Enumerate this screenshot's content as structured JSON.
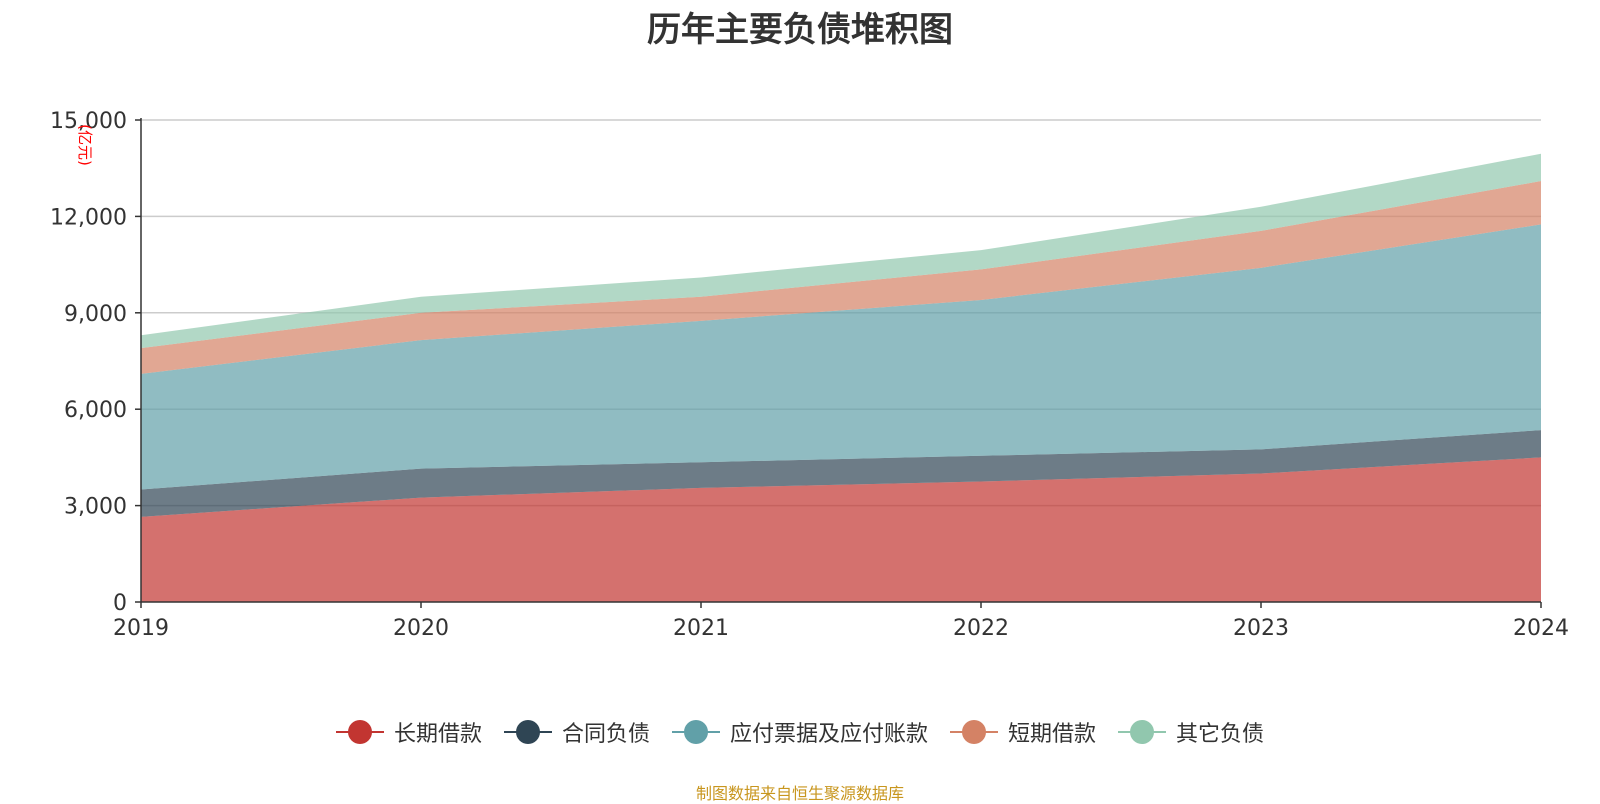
{
  "colors": {
    "长期借款": "#c23531",
    "合同负债": "#2f4554",
    "应付票据及应付账款": "#61a0a8",
    "短期借款": "#d48265",
    "其它负债": "#91c7ae",
    "axis": "#333333",
    "grid": "#cccccc",
    "unit_label": "#ff0000",
    "source_note": "#c8961e"
  },
  "chart_data": {
    "type": "area",
    "stacked": true,
    "title": "历年主要负债堆积图",
    "unit_label": "(亿元)",
    "x": [
      "2019",
      "2020",
      "2021",
      "2022",
      "2023",
      "2024"
    ],
    "ylim": [
      0,
      15000
    ],
    "yticks": [
      0,
      3000,
      6000,
      9000,
      12000,
      15000
    ],
    "ytick_labels": [
      "0",
      "3,000",
      "6,000",
      "9,000",
      "12,000",
      "15,000"
    ],
    "grid": true,
    "legend_position": "bottom",
    "series": [
      {
        "name": "长期借款",
        "values": [
          2650,
          3250,
          3550,
          3750,
          4000,
          4500
        ]
      },
      {
        "name": "合同负债",
        "values": [
          850,
          900,
          800,
          800,
          750,
          850
        ]
      },
      {
        "name": "应付票据及应付账款",
        "values": [
          3600,
          4000,
          4400,
          4850,
          5650,
          6400
        ]
      },
      {
        "name": "短期借款",
        "values": [
          800,
          850,
          750,
          950,
          1150,
          1350
        ]
      },
      {
        "name": "其它负债",
        "values": [
          400,
          500,
          600,
          600,
          750,
          850
        ]
      }
    ],
    "source_note": "制图数据来自恒生聚源数据库"
  }
}
